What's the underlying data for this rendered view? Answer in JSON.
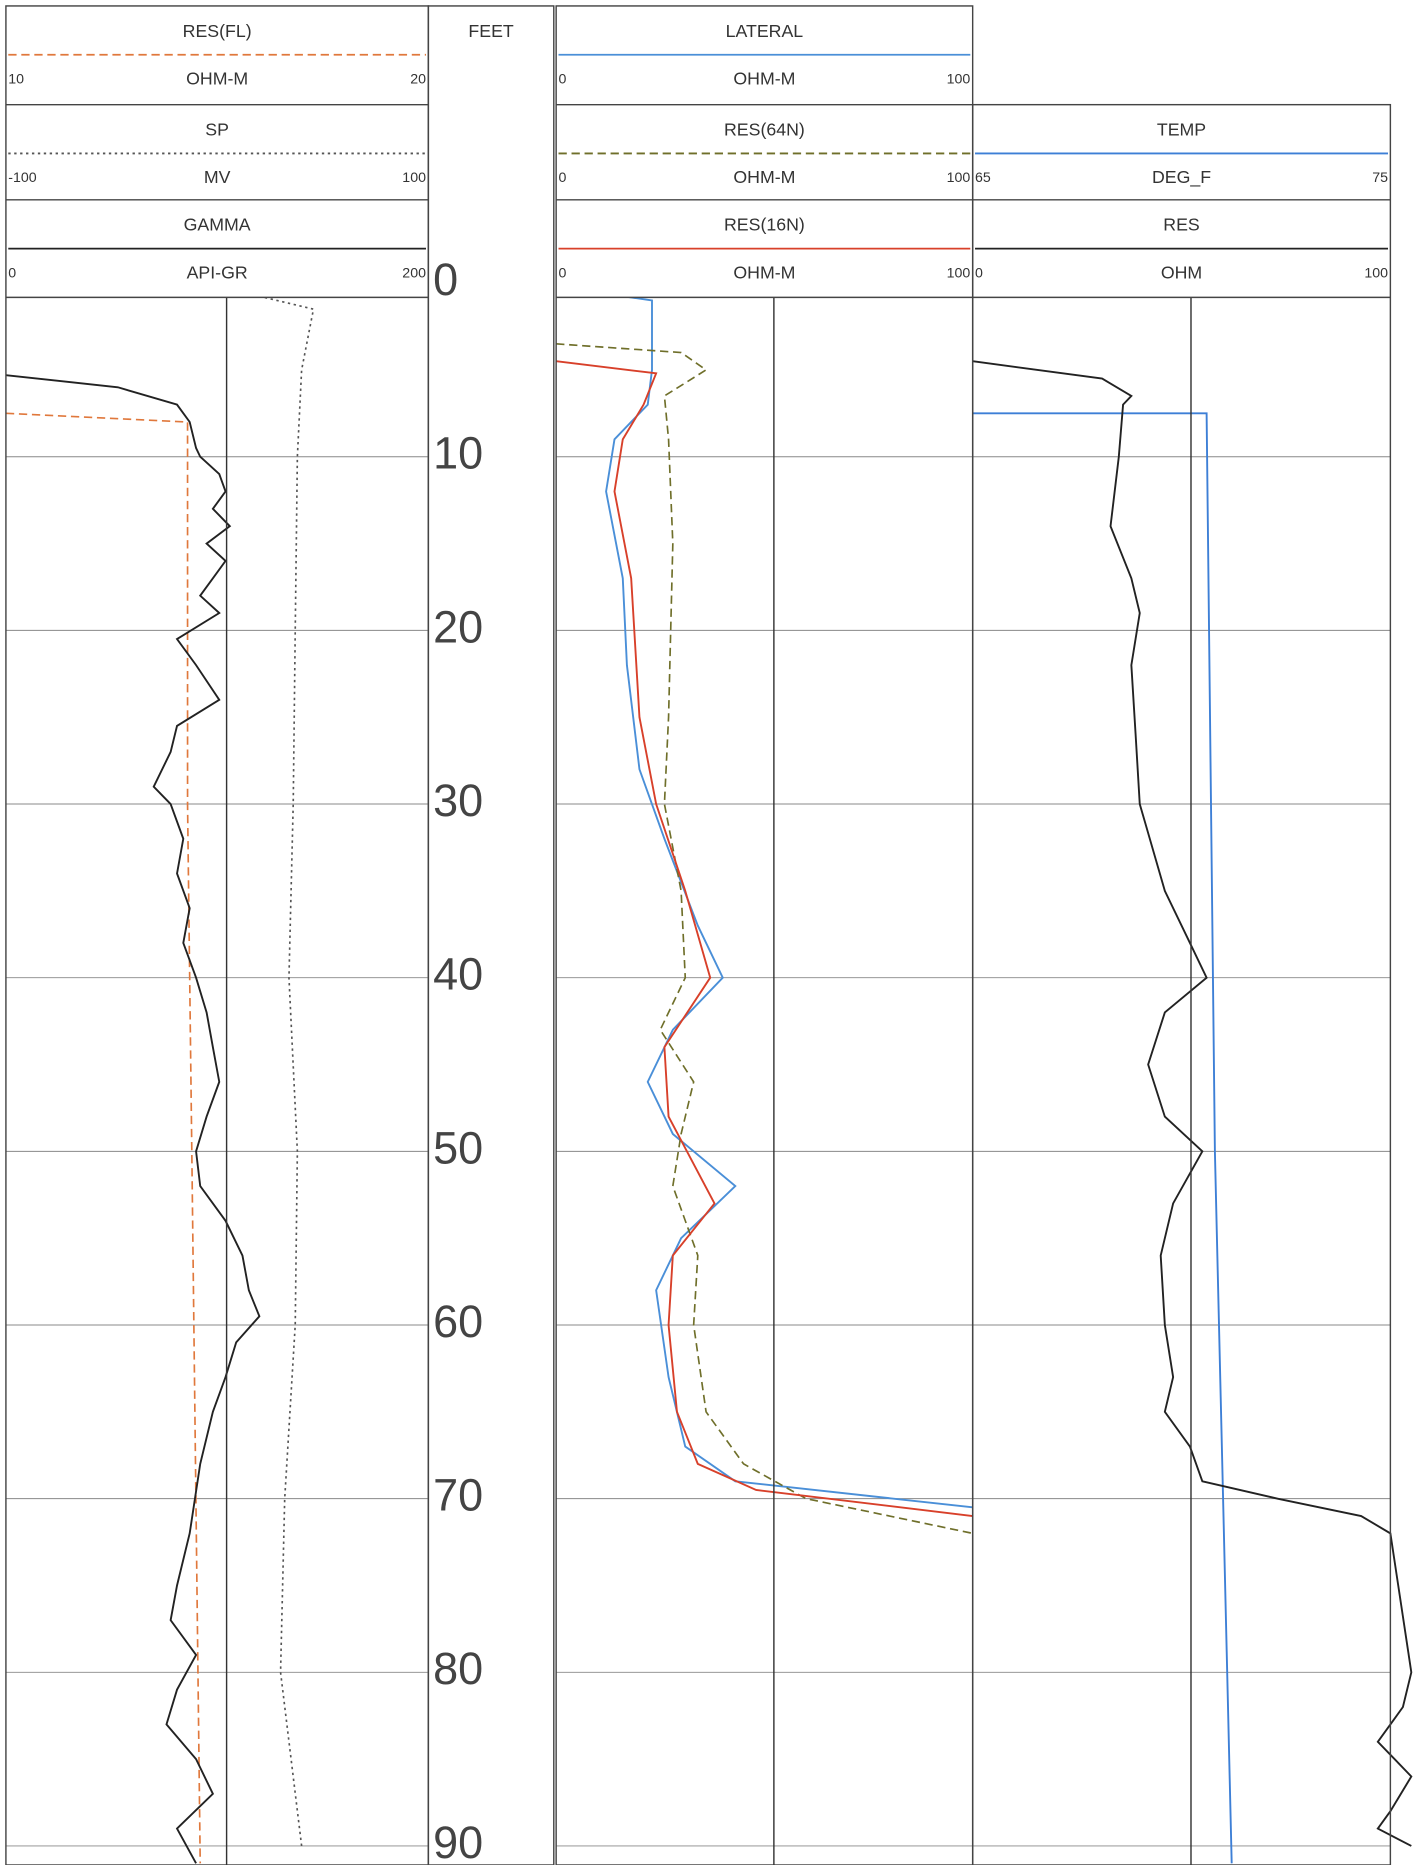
{
  "chart_data": {
    "type": "well-log",
    "depth_label": "FEET",
    "ylim": [
      0,
      91
    ],
    "yticks": [
      0,
      10,
      20,
      30,
      40,
      50,
      60,
      70,
      80,
      90
    ],
    "tracks": [
      {
        "curves": [
          {
            "name": "RES(FL)",
            "unit": "OHM-M",
            "xlim": [
              10,
              20
            ],
            "color": "#e0783c",
            "dash": "dashed",
            "depths": [
              7.5,
              8,
              30,
              50,
              91
            ],
            "values": [
              10,
              14.3,
              14.3,
              14.4,
              14.6
            ]
          },
          {
            "name": "SP",
            "unit": "MV",
            "xlim": [
              -100,
              100
            ],
            "color": "#555555",
            "dash": "dotted",
            "depths": [
              0.2,
              1.5,
              5,
              10,
              20,
              30,
              40,
              50,
              60,
              70,
              80,
              90
            ],
            "values": [
              0.8,
              45.6,
              40,
              38,
              37,
              36,
              34,
              38,
              37,
              32,
              30,
              40
            ]
          },
          {
            "name": "GAMMA",
            "unit": "API-GR",
            "xlim": [
              0,
              200
            ],
            "color": "#222222",
            "dash": "solid",
            "depths": [
              5.3,
              6,
              7,
              8,
              9.5,
              10,
              11,
              12,
              13,
              14,
              15,
              16,
              17,
              18,
              19,
              20.5,
              22,
              24,
              25.5,
              27,
              29,
              30,
              32,
              34,
              36,
              38,
              40,
              42,
              44,
              46,
              48,
              50,
              52,
              54,
              56,
              58,
              59.5,
              61,
              63,
              65,
              68,
              72,
              75,
              77,
              79,
              81,
              83,
              85,
              87,
              89,
              91
            ],
            "values": [
              0,
              53,
              81,
              87,
              90,
              92,
              101,
              104,
              98,
              106,
              95,
              104,
              98,
              92,
              101,
              81,
              90,
              101,
              81,
              78,
              70,
              78,
              84,
              81,
              87,
              84,
              90,
              95,
              98,
              101,
              95,
              90,
              92,
              104,
              112,
              115,
              120,
              109,
              104,
              98,
              92,
              87,
              81,
              78,
              90,
              81,
              76,
              90,
              98,
              81,
              90
            ]
          }
        ]
      },
      {
        "curves": [
          {
            "name": "LATERAL",
            "unit": "OHM-M",
            "xlim": [
              0,
              100
            ],
            "color": "#4a8fd8",
            "dash": "solid",
            "depths": [
              0.2,
              1,
              5,
              7,
              9,
              12,
              17,
              22,
              28,
              32,
              37,
              40,
              43,
              46,
              49,
              52,
              55,
              58,
              63,
              67,
              69,
              70.5
            ],
            "values": [
              0,
              23,
              23,
              22,
              14,
              12,
              16,
              17,
              20,
              26,
              34,
              40,
              28,
              22,
              28,
              43,
              30,
              24,
              27,
              31,
              43,
              100
            ]
          },
          {
            "name": "RES(64N)",
            "unit": "OHM-M",
            "xlim": [
              0,
              100
            ],
            "color": "#6f6f2a",
            "dash": "dashed",
            "depths": [
              3.5,
              4,
              5,
              6.5,
              9,
              15,
              25,
              30,
              35,
              40,
              43,
              46,
              49,
              52,
              56,
              60,
              65,
              68,
              70,
              72
            ],
            "values": [
              0,
              30,
              36,
              26,
              27,
              28,
              27,
              26,
              30,
              31,
              25,
              33,
              30,
              28,
              34,
              33,
              36,
              45,
              60,
              100
            ]
          },
          {
            "name": "RES(16N)",
            "unit": "OHM-M",
            "xlim": [
              0,
              100
            ],
            "color": "#d8402a",
            "dash": "solid",
            "depths": [
              4.5,
              5.2,
              7,
              9,
              12,
              17,
              25,
              30,
              35,
              40,
              44,
              48,
              53,
              56,
              60,
              65,
              68,
              69.5,
              71
            ],
            "values": [
              0,
              24,
              21,
              16,
              14,
              18,
              20,
              24,
              31,
              37,
              26,
              27,
              38,
              28,
              27,
              29,
              34,
              48,
              100
            ]
          }
        ]
      },
      {
        "curves": [
          {
            "name": "TEMP",
            "unit": "DEG_F",
            "xlim": [
              65,
              75
            ],
            "color": "#3d7fd6",
            "dash": "solid",
            "depths": [
              7.5,
              7.5,
              50,
              91
            ],
            "values": [
              65,
              70.6,
              70.8,
              71.2
            ]
          },
          {
            "name": "RES",
            "unit": "OHM",
            "xlim": [
              0,
              100
            ],
            "color": "#222222",
            "dash": "solid",
            "depths": [
              4.5,
              5.5,
              6.5,
              7,
              10,
              14,
              17,
              19,
              22,
              26,
              30,
              35,
              38,
              40,
              42,
              45,
              48,
              50,
              53,
              56,
              60,
              63,
              65,
              67,
              69,
              70,
              71,
              72,
              80,
              82,
              84,
              86,
              88,
              89,
              90
            ],
            "values": [
              0,
              31,
              38,
              36,
              35,
              33,
              38,
              40,
              38,
              39,
              40,
              46,
              52,
              56,
              46,
              42,
              46,
              55,
              48,
              45,
              46,
              48,
              46,
              52,
              55,
              73,
              93,
              100,
              105,
              103,
              97,
              105,
              100,
              97,
              105
            ]
          }
        ]
      }
    ]
  }
}
